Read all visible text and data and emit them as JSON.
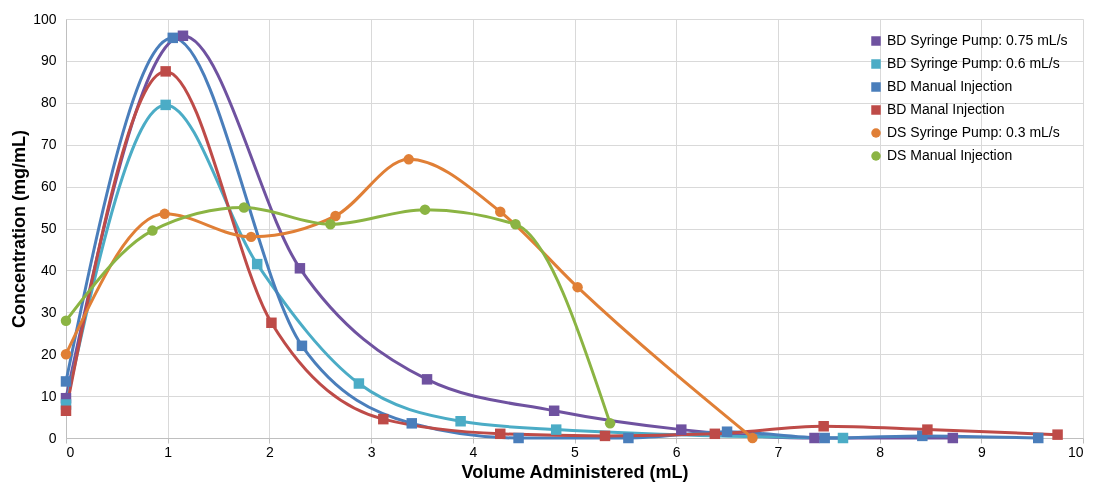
{
  "chart_data": {
    "type": "line",
    "xlabel": "Volume Administered (mL)",
    "ylabel": "Concentration (mg/mL)",
    "xlim": [
      0,
      10
    ],
    "xticks": [
      0,
      1,
      2,
      3,
      4,
      5,
      6,
      7,
      8,
      9,
      10
    ],
    "ylim": [
      0,
      100
    ],
    "yticks": [
      0,
      10,
      20,
      30,
      40,
      50,
      60,
      70,
      80,
      90,
      100
    ],
    "grid": true,
    "legend": "top right",
    "line_style": "solid",
    "series": [
      {
        "name": "BD Syringe Pump: 0.75 mL/s",
        "color": "#6f52a0",
        "marker": "square",
        "x": [
          0,
          1.15,
          2.3,
          3.55,
          4.8,
          6.05,
          7.36,
          8.72
        ],
        "values": [
          9.5,
          96,
          40.5,
          14,
          6.5,
          2,
          0,
          0
        ]
      },
      {
        "name": "BD Syringe Pump: 0.6 mL/s",
        "color": "#4bacc6",
        "marker": "square",
        "x": [
          0,
          0.98,
          1.88,
          2.88,
          3.88,
          4.82,
          7.64
        ],
        "values": [
          8,
          79.5,
          41.5,
          13,
          4,
          2,
          0
        ]
      },
      {
        "name": "BD Manual Injection",
        "color": "#4a7ebb",
        "marker": "square",
        "x": [
          0,
          1.05,
          2.32,
          3.4,
          4.45,
          5.53,
          6.5,
          7.46,
          8.42,
          9.56
        ],
        "values": [
          13.5,
          95.5,
          22,
          3.5,
          0,
          0,
          1.5,
          0,
          0.5,
          0
        ]
      },
      {
        "name": "BD Manal Injection",
        "color": "#be4b48",
        "marker": "square",
        "x": [
          0,
          0.98,
          2.02,
          3.12,
          4.27,
          5.3,
          6.38,
          7.45,
          8.47,
          9.75
        ],
        "values": [
          6.5,
          87.5,
          27.5,
          4.5,
          1,
          0.5,
          1,
          2.8,
          2,
          0.8
        ]
      },
      {
        "name": "DS Syringe Pump: 0.3 mL/s",
        "color": "#e07f36",
        "marker": "circle",
        "x": [
          0,
          0.97,
          1.82,
          2.65,
          3.37,
          4.27,
          5.03,
          6.75
        ],
        "values": [
          20,
          53.5,
          48,
          53,
          66.5,
          54,
          36,
          0
        ]
      },
      {
        "name": "DS Manual Injection",
        "color": "#8bb443",
        "marker": "circle",
        "x": [
          0,
          0.85,
          1.75,
          2.6,
          3.53,
          4.42,
          5.35
        ],
        "values": [
          28,
          49.5,
          55,
          51,
          54.5,
          51,
          3.5
        ]
      }
    ]
  }
}
